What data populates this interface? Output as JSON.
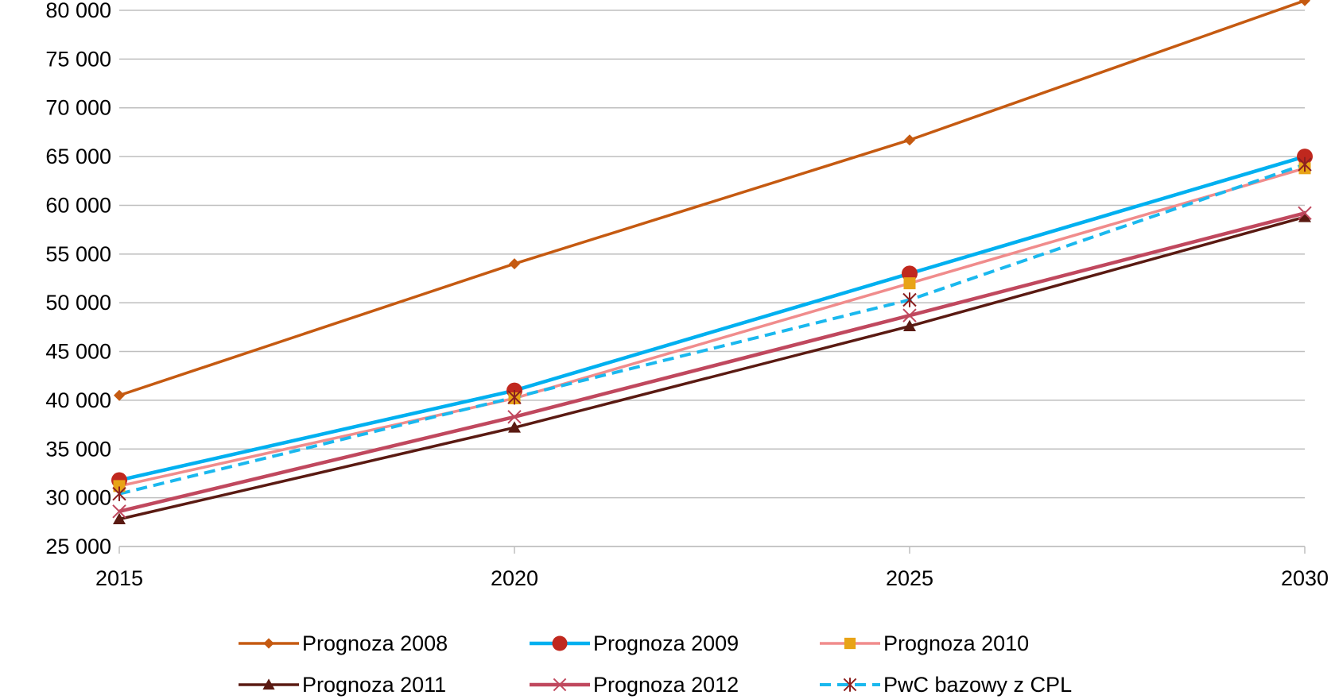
{
  "chart_data": {
    "type": "line",
    "title": "",
    "xlabel": "",
    "ylabel": "",
    "x": [
      2015,
      2020,
      2025,
      2030
    ],
    "x_tick_labels": [
      "2015",
      "2020",
      "2025",
      "2030"
    ],
    "ylim": [
      25000,
      80000
    ],
    "y_ticks": [
      25000,
      30000,
      35000,
      40000,
      45000,
      50000,
      55000,
      60000,
      65000,
      70000,
      75000,
      80000
    ],
    "y_tick_labels": [
      "25 000",
      "30 000",
      "35 000",
      "40 000",
      "45 000",
      "50 000",
      "55 000",
      "60 000",
      "65 000",
      "70 000",
      "75 000",
      "80 000"
    ],
    "grid": "horizontal",
    "legend_position": "bottom",
    "series": [
      {
        "name": "Prognoza 2008",
        "values": [
          40500,
          54000,
          66700,
          81000
        ],
        "color": "#C55A11",
        "marker": "diamond",
        "dash": "solid",
        "width": 3.5
      },
      {
        "name": "Prognoza 2009",
        "values": [
          31800,
          41000,
          53000,
          65000
        ],
        "color": "#00B0F0",
        "marker_color": "#C0281E",
        "marker": "circle",
        "dash": "solid",
        "width": 4.5
      },
      {
        "name": "Prognoza 2010",
        "values": [
          31200,
          40200,
          52000,
          63800
        ],
        "color": "#F08C8C",
        "marker_color": "#E8A317",
        "marker": "square",
        "dash": "solid",
        "width": 3.5
      },
      {
        "name": "Prognoza 2011",
        "values": [
          27800,
          37200,
          47600,
          58800
        ],
        "color": "#5A1A12",
        "marker": "triangle",
        "dash": "solid",
        "width": 3.5
      },
      {
        "name": "Prognoza 2012",
        "values": [
          28600,
          38300,
          48700,
          59200
        ],
        "color": "#C0485E",
        "marker": "x",
        "dash": "solid",
        "width": 4.5
      },
      {
        "name": "PwC bazowy z CPL",
        "values": [
          30400,
          40300,
          50300,
          64200
        ],
        "color": "#1AB8EE",
        "marker_color": "#8B2020",
        "marker": "star",
        "dash": "dashed",
        "width": 4
      }
    ]
  }
}
